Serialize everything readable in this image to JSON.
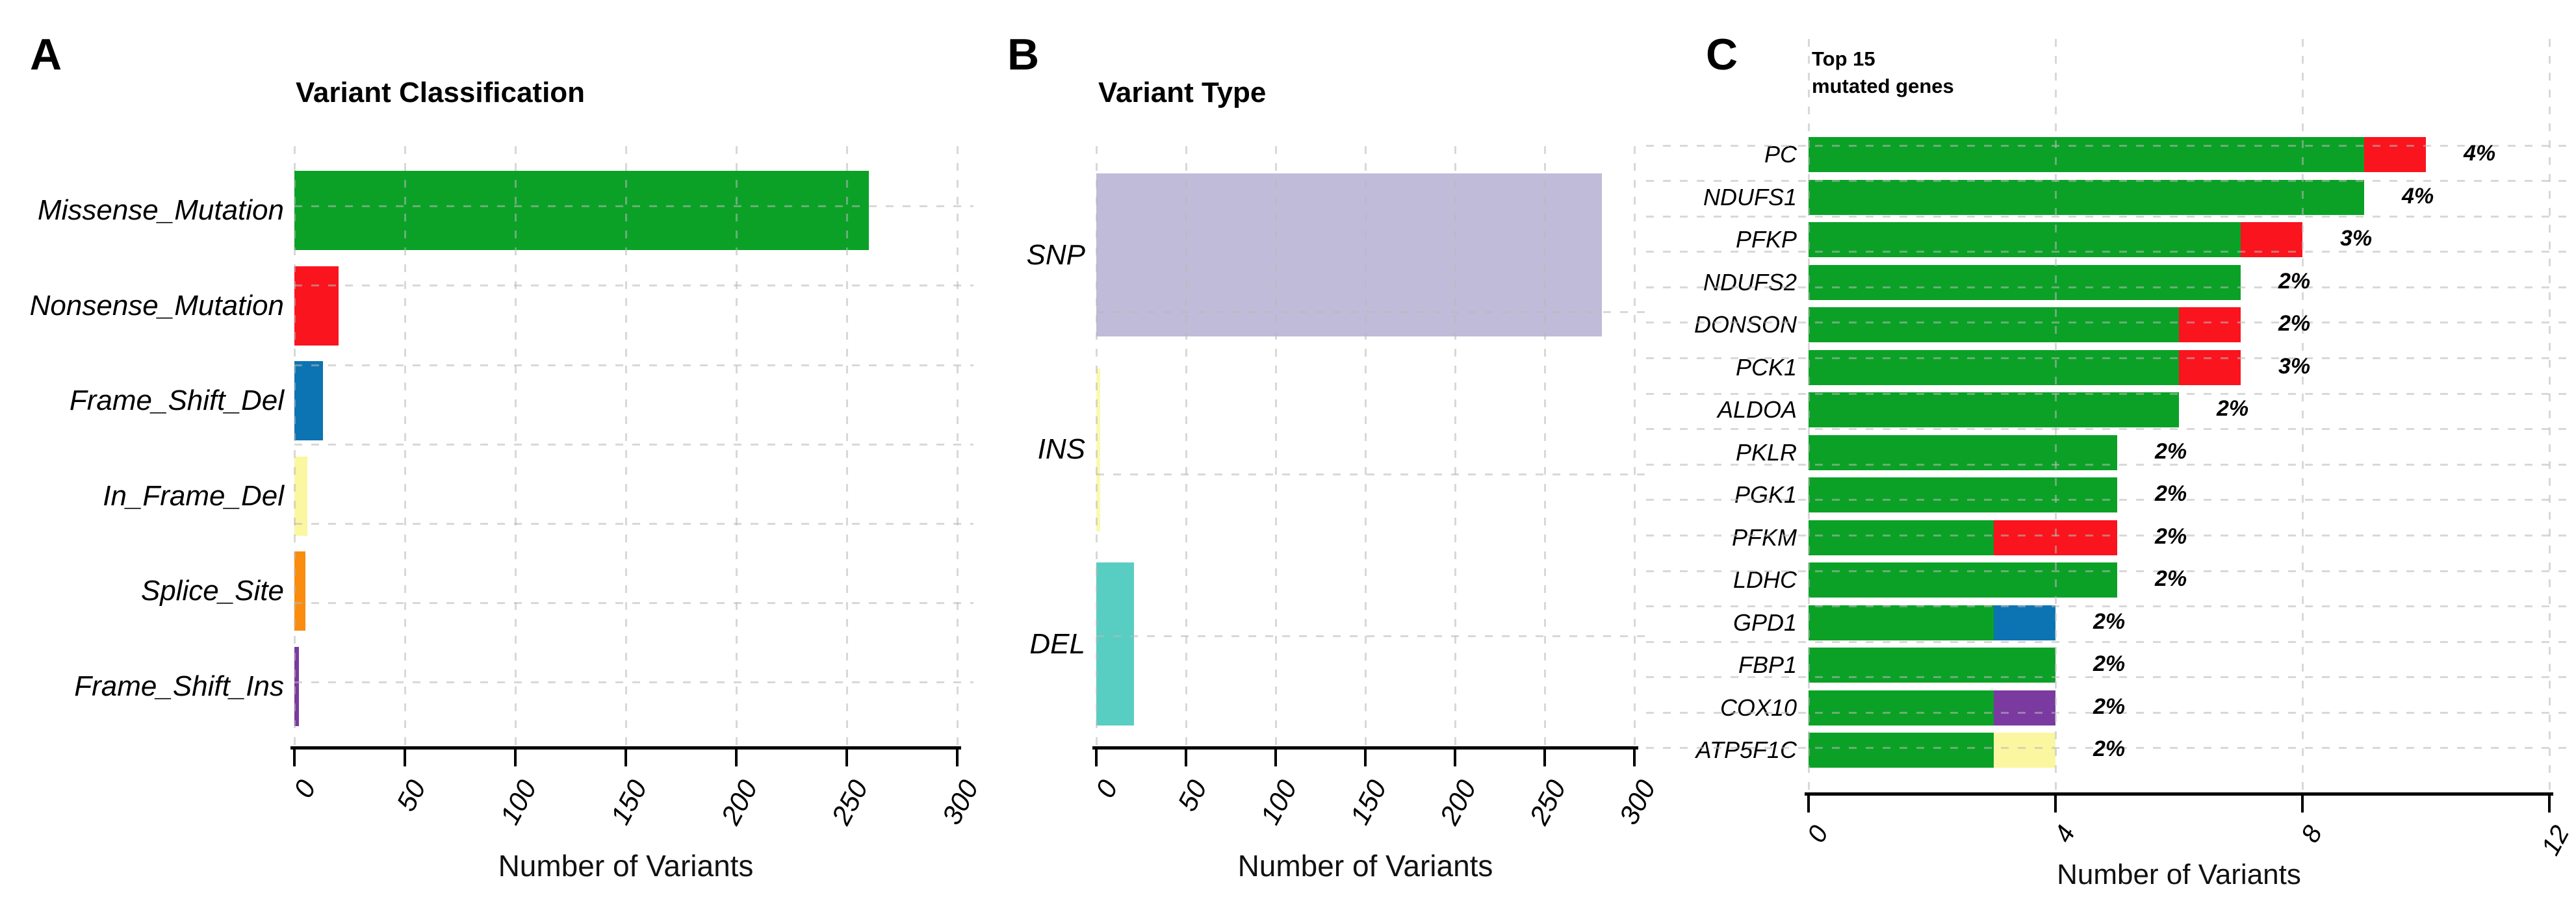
{
  "figure": {
    "background": "#FFFFFF"
  },
  "palette": {
    "Missense_Mutation": "#0BA127",
    "Nonsense_Mutation": "#FA141E",
    "Frame_Shift_Del": "#0C74B2",
    "In_Frame_Del": "#FAF7A0",
    "Splice_Site": "#FA8C0F",
    "Frame_Shift_Ins": "#7A3AA0",
    "SNP": "#BFBBD9",
    "INS": "#FBF9B0",
    "DEL": "#58CDC2"
  },
  "grid_color": "#D9D9D9",
  "chart_data": [
    {
      "panel_letter": "A",
      "type": "bar",
      "orientation": "horizontal",
      "title": "Variant Classification",
      "xlabel": "Number of Variants",
      "xlim": [
        0,
        300
      ],
      "xticks": [
        "0",
        "50",
        "100",
        "150",
        "200",
        "250",
        "300"
      ],
      "grid": true,
      "legend_position": "none",
      "categories": [
        "Missense_Mutation",
        "Nonsense_Mutation",
        "Frame_Shift_Del",
        "In_Frame_Del",
        "Splice_Site",
        "Frame_Shift_Ins"
      ],
      "values": [
        260,
        20,
        13,
        6,
        5,
        2
      ]
    },
    {
      "panel_letter": "B",
      "type": "bar",
      "orientation": "horizontal",
      "title": "Variant Type",
      "xlabel": "Number of Variants",
      "xlim": [
        0,
        300
      ],
      "xticks": [
        "0",
        "50",
        "100",
        "150",
        "200",
        "250",
        "300"
      ],
      "grid": true,
      "legend_position": "none",
      "categories": [
        "SNP",
        "INS",
        "DEL"
      ],
      "values": [
        282,
        2,
        21
      ]
    },
    {
      "panel_letter": "C",
      "type": "stacked_bar",
      "orientation": "horizontal",
      "title": "Top 15\nmutated genes",
      "xlabel": "Number of Variants",
      "xlim": [
        0,
        12
      ],
      "xticks": [
        "0",
        "4",
        "8",
        "12"
      ],
      "grid": true,
      "legend_position": "none",
      "categories": [
        "PC",
        "NDUFS1",
        "PFKP",
        "NDUFS2",
        "DONSON",
        "PCK1",
        "ALDOA",
        "PKLR",
        "PGK1",
        "PFKM",
        "LDHC",
        "GPD1",
        "FBP1",
        "COX10",
        "ATP5F1C"
      ],
      "percent_labels": [
        "4%",
        "4%",
        "3%",
        "2%",
        "2%",
        "3%",
        "2%",
        "2%",
        "2%",
        "2%",
        "2%",
        "2%",
        "2%",
        "2%",
        "2%"
      ],
      "series": [
        {
          "name": "Missense_Mutation",
          "values": [
            9,
            9,
            7,
            7,
            6,
            6,
            6,
            5,
            5,
            3,
            5,
            3,
            4,
            3,
            3
          ]
        },
        {
          "name": "Nonsense_Mutation",
          "values": [
            1,
            0,
            1,
            0,
            1,
            1,
            0,
            0,
            0,
            2,
            0,
            0,
            0,
            0,
            0
          ]
        },
        {
          "name": "Frame_Shift_Del",
          "values": [
            0,
            0,
            0,
            0,
            0,
            0,
            0,
            0,
            0,
            0,
            0,
            1,
            0,
            0,
            0
          ]
        },
        {
          "name": "Frame_Shift_Ins",
          "values": [
            0,
            0,
            0,
            0,
            0,
            0,
            0,
            0,
            0,
            0,
            0,
            0,
            0,
            1,
            0
          ]
        },
        {
          "name": "In_Frame_Del",
          "values": [
            0,
            0,
            0,
            0,
            0,
            0,
            0,
            0,
            0,
            0,
            0,
            0,
            0,
            0,
            1
          ]
        }
      ]
    }
  ]
}
